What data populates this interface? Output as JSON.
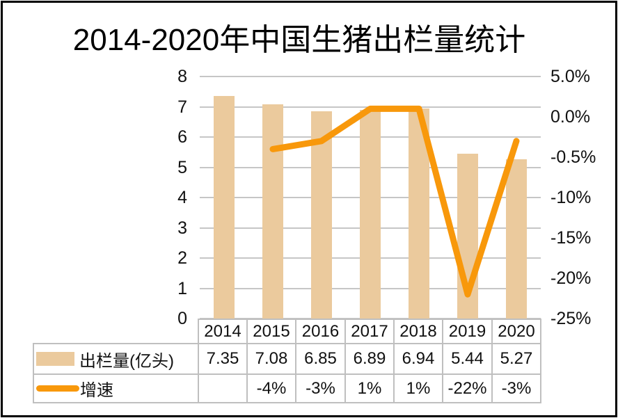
{
  "title": "2014-2020年中国生猪出栏量统计",
  "chart_data": {
    "type": "combo-bar-line",
    "title": "2014-2020年中国生猪出栏量统计",
    "categories": [
      "2014",
      "2015",
      "2016",
      "2017",
      "2018",
      "2019",
      "2020"
    ],
    "series": [
      {
        "name": "出栏量(亿头)",
        "type": "bar",
        "axis": "left",
        "color": "#EBCA9D",
        "values": [
          7.35,
          7.08,
          6.85,
          6.89,
          6.94,
          5.44,
          5.27
        ],
        "display": [
          "7.35",
          "7.08",
          "6.85",
          "6.89",
          "6.94",
          "5.44",
          "5.27"
        ]
      },
      {
        "name": "增速",
        "type": "line",
        "axis": "right",
        "color": "#F8980B",
        "values": [
          null,
          -4,
          -3,
          1,
          1,
          -22,
          -3
        ],
        "display": [
          "",
          "-4%",
          "-3%",
          "1%",
          "1%",
          "-22%",
          "-3%"
        ]
      }
    ],
    "left_axis": {
      "min": 0,
      "max": 8,
      "ticks": [
        "8",
        "7",
        "6",
        "5",
        "4",
        "3",
        "2",
        "1",
        "0"
      ]
    },
    "right_axis": {
      "min": -25,
      "max": 5,
      "ticks": [
        "5.0%",
        "0.0%",
        "-0.5%",
        "-10%",
        "-15%",
        "-20%",
        "-25%"
      ]
    },
    "grid": true,
    "legend_position": "table-left",
    "gridline_color": "#C6C6C6",
    "table_border_color": "#BFBFBF"
  }
}
